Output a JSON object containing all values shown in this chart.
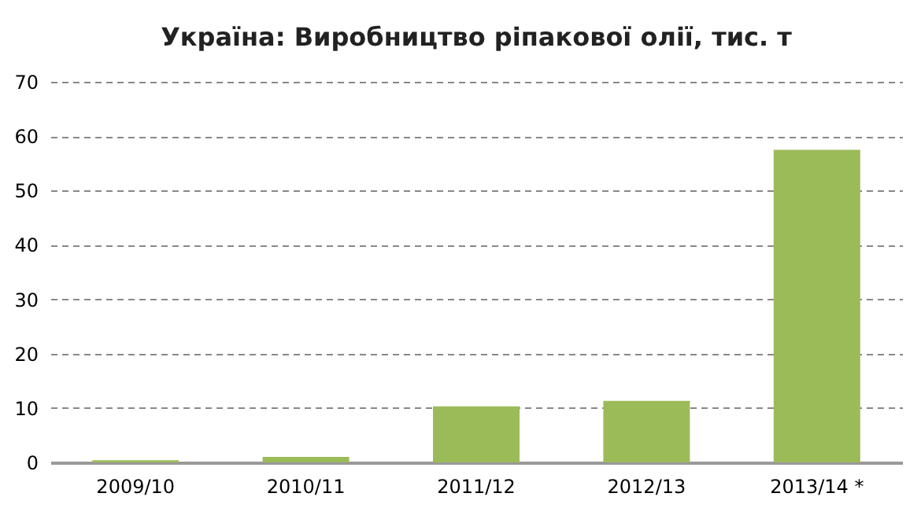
{
  "chart_data": {
    "type": "bar",
    "title": "Україна: Виробництво ріпакової олії, тис. т",
    "categories": [
      "2009/10",
      "2010/11",
      "2011/12",
      "2012/13",
      "2013/14 *"
    ],
    "values": [
      0.4,
      1.0,
      10.3,
      11.3,
      57.5
    ],
    "color": "#9bbb59",
    "ylim": [
      0,
      70
    ],
    "yticks": [
      0,
      10,
      20,
      30,
      40,
      50,
      60,
      70
    ],
    "grid": "y",
    "line_style": "dashed"
  }
}
